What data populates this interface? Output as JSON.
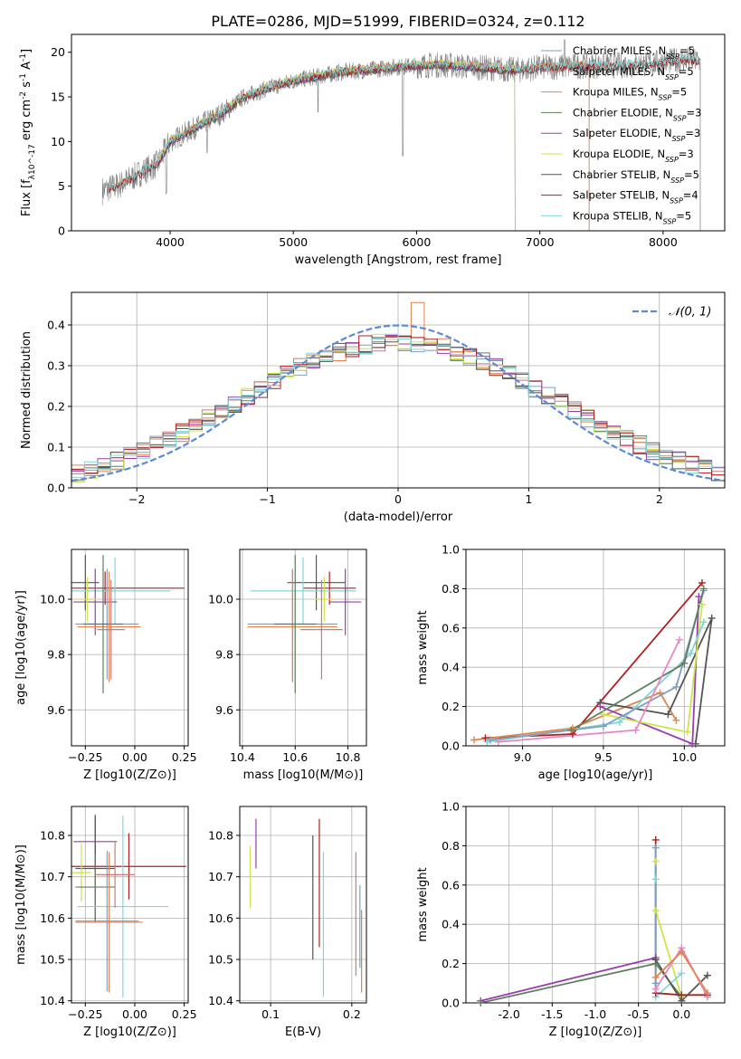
{
  "figure_title": "PLATE=0286, MJD=51999, FIBERID=0324, z=0.112",
  "colors": {
    "Chabrier MILES": "#7f9fbf",
    "Salpeter MILES": "#c77c7c",
    "Kroupa MILES": "#e2844a",
    "Chabrier ELODIE": "#5f7f5f",
    "Salpeter ELODIE": "#9a3dae",
    "Kroupa ELODIE": "#cfe34a",
    "Chabrier STELIB": "#555555",
    "Salpeter STELIB": "#b01f1f",
    "Kroupa STELIB": "#7fd8d8",
    "spectrum": "#808080",
    "gaussian": "#5b8ad8",
    "pink": "#e78ac3"
  },
  "chart_data": [
    {
      "id": "spectrum",
      "type": "line",
      "xlabel": "wavelength [Angstrom, rest frame]",
      "ylabel": "Flux [f_λ10^-17 erg cm^-2 s^-1 A^-1]",
      "xlim": [
        3200,
        8500
      ],
      "ylim": [
        0,
        22
      ],
      "xticks": [
        4000,
        5000,
        6000,
        7000,
        8000
      ],
      "yticks": [
        0,
        5,
        10,
        15,
        20
      ],
      "legend_position": "top-right",
      "spectrum_envelope": {
        "x": [
          3450,
          3600,
          3700,
          3800,
          3900,
          4000,
          4200,
          4400,
          4600,
          4800,
          5000,
          5200,
          5400,
          5600,
          5800,
          6000,
          6200,
          6400,
          6600,
          6800,
          7000,
          7200,
          7400,
          7600,
          7800,
          8000,
          8200,
          8300
        ],
        "y": [
          4.5,
          5.2,
          6.0,
          6.8,
          7.5,
          10.0,
          11.5,
          13.0,
          15.0,
          16.0,
          16.8,
          17.3,
          17.8,
          18.0,
          18.3,
          18.5,
          18.6,
          18.4,
          18.2,
          18.0,
          18.3,
          18.4,
          18.5,
          18.5,
          18.6,
          18.9,
          19.2,
          19.0
        ]
      },
      "legend": [
        "Chabrier MILES, N_SSP=5",
        "Salpeter MILES, N_SSP=5",
        "Kroupa MILES, N_SSP=5",
        "Chabrier ELODIE, N_SSP=3",
        "Salpeter ELODIE, N_SSP=3",
        "Kroupa ELODIE, N_SSP=3",
        "Chabrier STELIB, N_SSP=5",
        "Salpeter STELIB, N_SSP=4",
        "Kroupa STELIB, N_SSP=5"
      ]
    },
    {
      "id": "residuals",
      "type": "line",
      "xlabel": "(data-model)/error",
      "ylabel": "Normed distribution",
      "xlim": [
        -2.5,
        2.5
      ],
      "ylim": [
        0,
        0.48
      ],
      "xticks": [
        -2,
        -1,
        0,
        1,
        2
      ],
      "yticks": [
        0.0,
        0.1,
        0.2,
        0.3,
        0.4
      ],
      "grid": true,
      "legend": [
        "𝒩(0, 1)"
      ],
      "legend_position": "top-right",
      "gaussian": {
        "mean": 0,
        "sigma": 1
      }
    },
    {
      "id": "age-vs-Z",
      "type": "scatter",
      "xlabel": "Z [log10(Z/Z⊙)]",
      "ylabel": "age  [log10(age/yr)]",
      "xlim": [
        -0.32,
        0.27
      ],
      "ylim": [
        9.47,
        10.18
      ],
      "xticks": [
        -0.25,
        0.0,
        0.25
      ],
      "yticks": [
        9.6,
        9.8,
        10.0
      ],
      "grid": true,
      "points": [
        {
          "model": "Chabrier STELIB",
          "x": -0.25,
          "xerr": 0.07,
          "y": 10.06,
          "yerr": 0.1
        },
        {
          "model": "Salpeter STELIB",
          "x": -0.15,
          "xerr": 0.4,
          "y": 10.04,
          "yerr": 0.06
        },
        {
          "model": "Kroupa STELIB",
          "x": -0.1,
          "xerr": 0.28,
          "y": 10.03,
          "yerr": 0.12
        },
        {
          "model": "Salpeter ELODIE",
          "x": -0.2,
          "xerr": 0.11,
          "y": 9.99,
          "yerr": 0.12
        },
        {
          "model": "Kroupa ELODIE",
          "x": -0.24,
          "xerr": 0.05,
          "y": 10.0,
          "yerr": 0.08
        },
        {
          "model": "Chabrier MILES",
          "x": -0.14,
          "xerr": 0.16,
          "y": 9.91,
          "yerr": 0.2
        },
        {
          "model": "Kroupa MILES",
          "x": -0.13,
          "xerr": 0.16,
          "y": 9.9,
          "yerr": 0.2
        },
        {
          "model": "Chabrier ELODIE",
          "x": -0.16,
          "xerr": 0.1,
          "y": 9.91,
          "yerr": 0.25
        },
        {
          "model": "Salpeter MILES",
          "x": -0.12,
          "xerr": 0.07,
          "y": 9.89,
          "yerr": 0.18
        }
      ]
    },
    {
      "id": "age-vs-mass",
      "type": "scatter",
      "xlabel": "mass [log10(M/M⊙)]",
      "ylabel": "",
      "xlim": [
        10.39,
        10.87
      ],
      "ylim": [
        9.47,
        10.18
      ],
      "xticks": [
        10.4,
        10.6,
        10.8
      ],
      "yticks": [
        9.6,
        9.8,
        10.0
      ],
      "grid": true,
      "points": [
        {
          "model": "Chabrier STELIB",
          "x": 10.68,
          "xerr": 0.11,
          "y": 10.06,
          "yerr": 0.1
        },
        {
          "model": "Salpeter STELIB",
          "x": 10.73,
          "xerr": 0.1,
          "y": 10.04,
          "yerr": 0.06
        },
        {
          "model": "Kroupa STELIB",
          "x": 10.63,
          "xerr": 0.2,
          "y": 10.03,
          "yerr": 0.12
        },
        {
          "model": "Salpeter ELODIE",
          "x": 10.79,
          "xerr": 0.06,
          "y": 9.99,
          "yerr": 0.12
        },
        {
          "model": "Kroupa ELODIE",
          "x": 10.71,
          "xerr": 0.04,
          "y": 10.0,
          "yerr": 0.08
        },
        {
          "model": "Chabrier MILES",
          "x": 10.59,
          "xerr": 0.17,
          "y": 9.91,
          "yerr": 0.2
        },
        {
          "model": "Kroupa MILES",
          "x": 10.59,
          "xerr": 0.17,
          "y": 9.9,
          "yerr": 0.2
        },
        {
          "model": "Chabrier ELODIE",
          "x": 10.6,
          "xerr": 0.08,
          "y": 9.91,
          "yerr": 0.25
        },
        {
          "model": "Salpeter MILES",
          "x": 10.7,
          "xerr": 0.08,
          "y": 9.89,
          "yerr": 0.18
        }
      ]
    },
    {
      "id": "weight-vs-age",
      "type": "line",
      "xlabel": "age  [log10(age/yr)]",
      "ylabel": "mass weight",
      "xlim": [
        8.65,
        10.25
      ],
      "ylim": [
        0,
        1
      ],
      "xticks": [
        9.0,
        9.5,
        10.0
      ],
      "yticks": [
        0.0,
        0.2,
        0.4,
        0.6,
        0.8,
        1.0
      ],
      "grid": true,
      "series": [
        {
          "model": "Salpeter STELIB",
          "x": [
            8.77,
            9.31,
            10.11
          ],
          "y": [
            0.04,
            0.06,
            0.83
          ]
        },
        {
          "model": "Kroupa MILES",
          "x": [
            8.7,
            9.31,
            9.85,
            9.95
          ],
          "y": [
            0.03,
            0.09,
            0.27,
            0.13
          ]
        },
        {
          "model": "Chabrier STELIB",
          "x": [
            9.48,
            9.9,
            10.17,
            10.07
          ],
          "y": [
            0.22,
            0.16,
            0.65,
            0.01
          ]
        },
        {
          "model": "Salpeter ELODIE",
          "x": [
            9.48,
            10.05,
            10.09
          ],
          "y": [
            0.2,
            0.01,
            0.76
          ]
        },
        {
          "model": "Kroupa ELODIE",
          "x": [
            9.5,
            10.02,
            10.11
          ],
          "y": [
            0.16,
            0.07,
            0.72
          ]
        },
        {
          "model": "Kroupa STELIB",
          "x": [
            8.78,
            9.6,
            10.04,
            10.12
          ],
          "y": [
            0.02,
            0.12,
            0.47,
            0.63
          ]
        },
        {
          "model": "Chabrier MILES",
          "x": [
            8.8,
            9.5,
            9.95,
            10.12
          ],
          "y": [
            0.03,
            0.1,
            0.3,
            0.79
          ]
        },
        {
          "model": "Chabrier ELODIE",
          "x": [
            9.3,
            10.0,
            10.12
          ],
          "y": [
            0.08,
            0.42,
            0.8
          ]
        },
        {
          "model": "Pink",
          "x": [
            8.85,
            9.7,
            9.97
          ],
          "y": [
            0.02,
            0.08,
            0.54
          ]
        }
      ]
    },
    {
      "id": "mass-vs-Z",
      "type": "scatter",
      "xlabel": "Z [log10(Z/Z⊙)]",
      "ylabel": "mass [log10(M/M⊙)]",
      "xlim": [
        -0.32,
        0.27
      ],
      "ylim": [
        10.395,
        10.87
      ],
      "xticks": [
        -0.25,
        0.0,
        0.25
      ],
      "yticks": [
        10.4,
        10.5,
        10.6,
        10.7,
        10.8
      ],
      "grid": true,
      "points": [
        {
          "model": "Salpeter ELODIE",
          "x": -0.2,
          "xerr": 0.11,
          "y": 10.785,
          "yerr": 0.06
        },
        {
          "model": "Chabrier STELIB",
          "x": -0.2,
          "xerr": 0.1,
          "y": 10.72,
          "yerr": 0.13
        },
        {
          "model": "Salpeter STELIB",
          "x": -0.03,
          "xerr": 0.29,
          "y": 10.725,
          "yerr": 0.08
        },
        {
          "model": "Kroupa ELODIE",
          "x": -0.27,
          "xerr": 0.05,
          "y": 10.71,
          "yerr": 0.07
        },
        {
          "model": "Chabrier ELODIE",
          "x": -0.2,
          "xerr": 0.1,
          "y": 10.675,
          "yerr": 0.08
        },
        {
          "model": "Kroupa STELIB",
          "x": -0.06,
          "xerr": 0.23,
          "y": 10.628,
          "yerr": 0.22
        },
        {
          "model": "Chabrier MILES",
          "x": -0.14,
          "xerr": 0.16,
          "y": 10.593,
          "yerr": 0.17
        },
        {
          "model": "Kroupa MILES",
          "x": -0.13,
          "xerr": 0.17,
          "y": 10.59,
          "yerr": 0.17
        },
        {
          "model": "Salpeter MILES",
          "x": -0.1,
          "xerr": 0.1,
          "y": 10.705,
          "yerr": 0.08
        }
      ]
    },
    {
      "id": "mass-vs-EBV",
      "type": "scatter",
      "xlabel": "E(B-V)",
      "ylabel": "",
      "xlim": [
        0.062,
        0.218
      ],
      "ylim": [
        10.395,
        10.87
      ],
      "xticks": [
        0.1,
        0.2
      ],
      "yticks": [
        10.4,
        10.5,
        10.6,
        10.7,
        10.8
      ],
      "grid": true,
      "points": [
        {
          "model": "Kroupa ELODIE",
          "x": 0.075,
          "y": 10.7,
          "yerr": 0.075
        },
        {
          "model": "Salpeter ELODIE",
          "x": 0.082,
          "y": 10.78,
          "yerr": 0.06
        },
        {
          "model": "Chabrier STELIB",
          "x": 0.152,
          "y": 10.65,
          "yerr": 0.15
        },
        {
          "model": "Salpeter STELIB",
          "x": 0.16,
          "y": 10.685,
          "yerr": 0.155
        },
        {
          "model": "Kroupa STELIB",
          "x": 0.165,
          "y": 10.585,
          "yerr": 0.175
        },
        {
          "model": "Salpeter MILES",
          "x": 0.205,
          "y": 10.61,
          "yerr": 0.15
        },
        {
          "model": "Chabrier MILES",
          "x": 0.21,
          "y": 10.58,
          "yerr": 0.1
        },
        {
          "model": "Kroupa MILES",
          "x": 0.212,
          "y": 10.52,
          "yerr": 0.1
        }
      ]
    },
    {
      "id": "weight-vs-Z",
      "type": "line",
      "xlabel": "Z [log10(Z/Z⊙)]",
      "ylabel": "mass weight",
      "xlim": [
        -2.5,
        0.5
      ],
      "ylim": [
        0,
        1
      ],
      "xticks": [
        -2.0,
        -1.5,
        -1.0,
        -0.5,
        0.0
      ],
      "yticks": [
        0.0,
        0.2,
        0.4,
        0.6,
        0.8,
        1.0
      ],
      "grid": true,
      "series": [
        {
          "model": "Salpeter ELODIE",
          "x": [
            -2.33,
            -0.3
          ],
          "y": [
            0.01,
            0.23
          ]
        },
        {
          "model": "Chabrier ELODIE",
          "x": [
            -2.33,
            -0.3,
            0.0
          ],
          "y": [
            0.0,
            0.2,
            0.03
          ]
        },
        {
          "model": "Kroupa ELODIE",
          "x": [
            -0.3,
            -0.3,
            0.0
          ],
          "y": [
            0.72,
            0.47,
            0.03
          ]
        },
        {
          "model": "Kroupa STELIB",
          "x": [
            -0.3,
            -0.3,
            0.0
          ],
          "y": [
            0.63,
            0.03,
            0.15
          ]
        },
        {
          "model": "Salpeter STELIB",
          "x": [
            -0.3,
            -0.3,
            0.0,
            0.3
          ],
          "y": [
            0.83,
            0.05,
            0.04,
            0.04
          ]
        },
        {
          "model": "Chabrier STELIB",
          "x": [
            -0.3,
            0.0,
            0.3
          ],
          "y": [
            0.22,
            0.01,
            0.14
          ]
        },
        {
          "model": "Pink",
          "x": [
            -0.3,
            0.0,
            0.3
          ],
          "y": [
            0.07,
            0.28,
            0.03
          ]
        },
        {
          "model": "Kroupa MILES",
          "x": [
            -0.3,
            0.0,
            0.3
          ],
          "y": [
            0.13,
            0.26,
            0.05
          ]
        },
        {
          "model": "Chabrier MILES",
          "x": [
            -0.3,
            -0.3
          ],
          "y": [
            0.79,
            0.1
          ]
        }
      ]
    }
  ]
}
